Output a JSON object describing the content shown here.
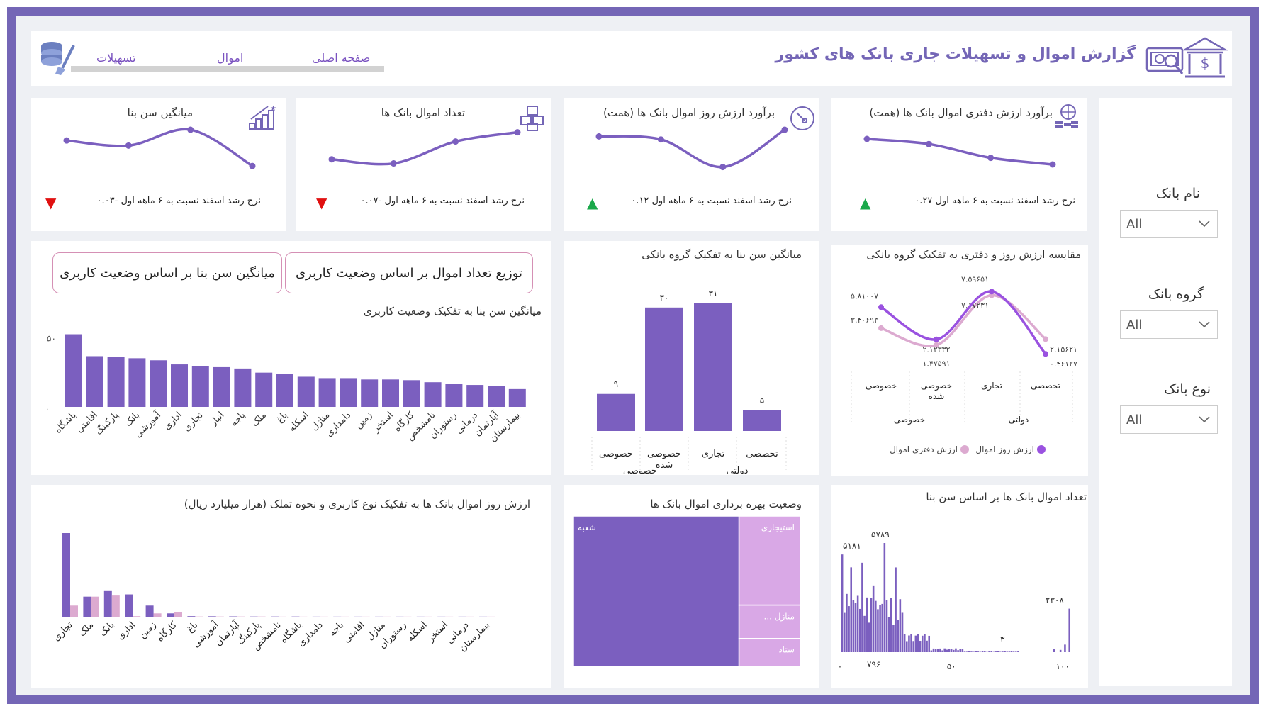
{
  "header": {
    "title": "گزارش اموال و تسهیلات جاری بانک های کشور",
    "nav": [
      "صفحه اصلی",
      "اموال",
      "تسهیلات"
    ]
  },
  "colors": {
    "purple": "#7b5fbf",
    "purple_bright": "#9a52e0",
    "pink": "#dcaad0",
    "lilac": "#d9a8e6",
    "green": "#1aa84a",
    "red": "#e01010"
  },
  "kpis": [
    {
      "title": "برآورد ارزش دفتری اموال بانک ها (همت)",
      "footer": "نرخ رشد اسفند نسبت به ۶ ماهه اول ۰.۲۷",
      "trend": "up",
      "icon": "coins-globe-icon",
      "spark": [
        0.75,
        0.65,
        0.38,
        0.25
      ]
    },
    {
      "title": "برآورد ارزش روز اموال بانک ها (همت)",
      "footer": "نرخ رشد اسفند نسبت به ۶ ماهه اول ۰.۱۲",
      "trend": "up",
      "icon": "gauge-icon",
      "spark": [
        0.8,
        0.74,
        0.2,
        0.93
      ]
    },
    {
      "title": "تعداد اموال بانک ها",
      "footer": "نرخ رشد اسفند نسبت به ۶ ماهه اول -۰.۰۷",
      "trend": "down",
      "icon": "boxes-icon",
      "spark": [
        0.35,
        0.27,
        0.7,
        0.88
      ]
    },
    {
      "title": "میانگین سن بنا",
      "footer": "نرخ رشد اسفند نسبت به ۶ ماهه اول -۰.۰۳",
      "trend": "down",
      "icon": "growth-stairs-icon",
      "spark": [
        0.72,
        0.62,
        0.93,
        0.22
      ]
    }
  ],
  "slicers": [
    {
      "label": "نام بانک",
      "value": "All"
    },
    {
      "label": "گروه بانک",
      "value": "All"
    },
    {
      "label": "نوع بانک",
      "value": "All"
    }
  ],
  "buttons": {
    "distribution": "توزیع تعداد اموال بر اساس وضعیت کاربری",
    "avg_age": "میانگین سن بنا بر اساس وضعیت کاربری"
  },
  "charts": {
    "usage_age": {
      "title": "میانگین سن بنا به تفکیک وضعیت کاربری"
    },
    "group_age": {
      "title": "میانگین سن بنا به تفکیک گروه بانکی"
    },
    "compare": {
      "title": "مقایسه ارزش روز و دفتری به تفکیک گروه بانکی"
    },
    "value_usage": {
      "title": "ارزش روز اموال بانک ها به تفکیک نوع کاربری و نحوه تملک (هزار میلیارد ریال)"
    },
    "treemap": {
      "title": "وضعیت بهره برداری اموال بانک ها"
    },
    "histogram": {
      "title": "تعداد اموال بانک ها بر اساس سن بنا"
    }
  },
  "chart_data": [
    {
      "type": "bar",
      "title": "میانگین سن بنا به تفکیک وضعیت کاربری",
      "categories": [
        "باشگاه",
        "اقامتی",
        "پارکینگ",
        "بانک",
        "آموزشی",
        "اداری",
        "تجاری",
        "انبار",
        "باجه",
        "ملک",
        "باغ",
        "اسکله",
        "منازل",
        "دامداری",
        "زمین",
        "استخر",
        "کارگاه",
        "نامشخص",
        "رستوران",
        "درمانی",
        "آپارتمان",
        "بیمارستان"
      ],
      "values": [
        53,
        37,
        36.5,
        35.5,
        34,
        31,
        30,
        29,
        28,
        25,
        24,
        22,
        21,
        21,
        20,
        20,
        19.5,
        18,
        17,
        16,
        15,
        13
      ],
      "ytick": "۵۰",
      "ytick_zero": "۰",
      "ylim": [
        0,
        60
      ]
    },
    {
      "type": "bar",
      "title": "میانگین سن بنا به تفکیک گروه بانکی",
      "categories": [
        "خصوصی",
        "خصوصی شده",
        "تجاری",
        "تخصصی"
      ],
      "groups": [
        "خصوصی",
        "دولتی"
      ],
      "values": [
        9,
        30,
        31,
        5
      ],
      "labels": [
        "۹",
        "۳۰",
        "۳۱",
        "۵"
      ]
    },
    {
      "type": "line",
      "title": "مقایسه ارزش روز و دفتری به تفکیک گروه بانکی",
      "categories": [
        "خصوصی",
        "خصوصی شده",
        "تجاری",
        "تخصصی"
      ],
      "groups": [
        "خصوصی",
        "دولتی"
      ],
      "series": [
        {
          "name": "ارزش روز اموال",
          "values": [
            5.81007,
            2.12332,
            7.59651,
            0.46127
          ],
          "labels": [
            "۵.۸۱۰۰۷",
            "۲.۱۲۳۳۲",
            "۷.۵۹۶۵۱",
            "۰.۴۶۱۲۷"
          ]
        },
        {
          "name": "ارزش دفتری اموال",
          "values": [
            3.40693,
            1.47591,
            7.17231,
            2.15621
          ],
          "labels": [
            "۳.۴۰۶۹۳",
            "۱.۴۷۵۹۱",
            "۷.۱۷۲۳۱",
            "۲.۱۵۶۲۱"
          ]
        }
      ]
    },
    {
      "type": "bar",
      "title": "ارزش روز اموال بانک ها به تفکیک نوع کاربری و نحوه تملک (هزار میلیارد ریال)",
      "categories": [
        "تجاری",
        "ملک",
        "بانک",
        "اداری",
        "زمین",
        "کارگاه",
        "باغ",
        "آموزشی",
        "آپارتمان",
        "پارکینگ",
        "نامشخص",
        "باشگاه",
        "دامداری",
        "باجه",
        "اقامتی",
        "منازل",
        "رستوران",
        "اسکله",
        "استخر",
        "درمانی",
        "بیمارستان"
      ],
      "series": [
        {
          "values": [
            75,
            18,
            23,
            20,
            10,
            3,
            0.5,
            0.4,
            0.3,
            0.2,
            0.2,
            0.2,
            0.1,
            0.1,
            0.1,
            0.1,
            0.1,
            0.1,
            0.1,
            0.1,
            0.1
          ]
        },
        {
          "values": [
            10,
            18,
            19,
            0.5,
            3,
            4,
            0.2,
            0.2,
            0.2,
            0.2,
            0.1,
            0.1,
            0.1,
            0.1,
            0.1,
            0.1,
            0.1,
            0.1,
            0.1,
            0.1,
            0.1
          ]
        }
      ]
    },
    {
      "type": "treemap",
      "title": "وضعیت بهره برداری اموال بانک ها",
      "items": [
        {
          "label": "شعبه",
          "share": 0.73
        },
        {
          "label": "استیجاری",
          "share": 0.16
        },
        {
          "label": "... منازل",
          "share": 0.06
        },
        {
          "label": "ستاد",
          "share": 0.05
        }
      ]
    },
    {
      "type": "bar",
      "title": "تعداد اموال بانک ها بر اساس سن بنا",
      "xticks": [
        "۰",
        "۵۰",
        "۱۰۰"
      ],
      "xlim": [
        0,
        105
      ],
      "annotations": [
        {
          "label": "۵۱۸۱",
          "x": 1,
          "value": 5181
        },
        {
          "label": "۵۷۸۹",
          "x": 20,
          "value": 5789
        },
        {
          "label": "۷۹۶",
          "x": 14,
          "value": 796
        },
        {
          "label": "۳",
          "x": 80,
          "value": 3
        },
        {
          "label": "۲۳۰۸",
          "x": 103,
          "value": 2308
        }
      ]
    }
  ]
}
